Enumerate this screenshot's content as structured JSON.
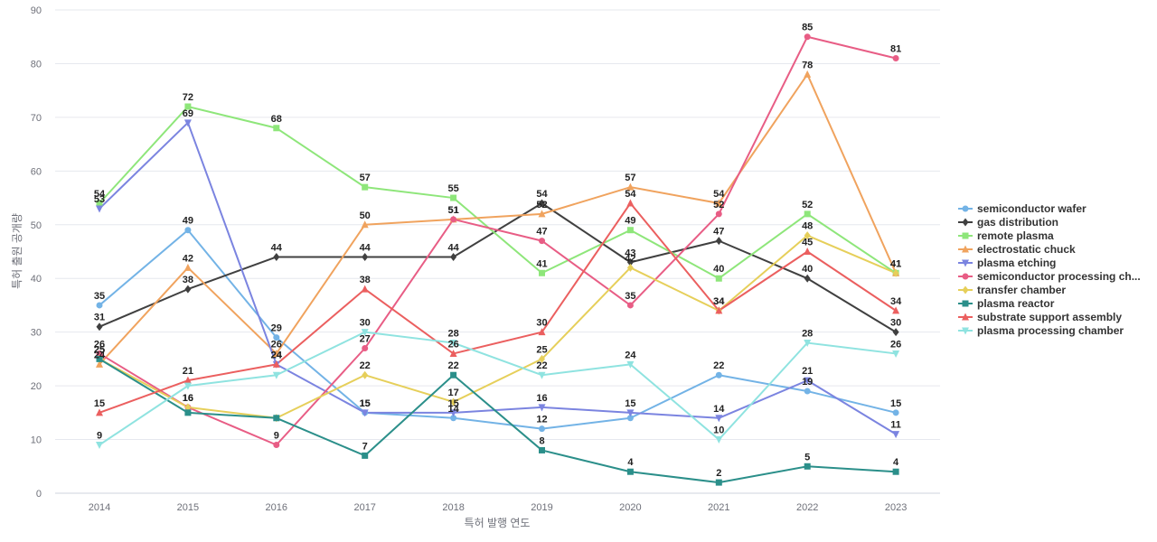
{
  "chart_data": {
    "type": "line",
    "xlabel": "특허 발행 연도",
    "ylabel": "특허 출원 공개량",
    "ylim": [
      0,
      90
    ],
    "yticks": [
      0,
      10,
      20,
      30,
      40,
      50,
      60,
      70,
      80,
      90
    ],
    "grid": true,
    "legend_position": "right",
    "categories": [
      "2014",
      "2015",
      "2016",
      "2017",
      "2018",
      "2019",
      "2020",
      "2021",
      "2022",
      "2023"
    ],
    "series": [
      {
        "name": "semiconductor wafer",
        "color": "#73b3e6",
        "marker": "circle",
        "values": [
          35,
          49,
          29,
          15,
          14,
          12,
          14,
          22,
          19,
          15
        ]
      },
      {
        "name": "gas distribution",
        "color": "#404040",
        "marker": "diamond",
        "values": [
          31,
          38,
          44,
          44,
          44,
          54,
          43,
          47,
          40,
          30
        ]
      },
      {
        "name": "remote plasma",
        "color": "#8ee67a",
        "marker": "square",
        "values": [
          54,
          72,
          68,
          57,
          55,
          41,
          49,
          40,
          52,
          41
        ]
      },
      {
        "name": "electrostatic chuck",
        "color": "#f0a35e",
        "marker": "triangle",
        "values": [
          24,
          42,
          26,
          50,
          51,
          52,
          57,
          54,
          78,
          41
        ]
      },
      {
        "name": "plasma etching",
        "color": "#7b84e0",
        "marker": "triangle-down",
        "values": [
          53,
          69,
          24,
          15,
          15,
          16,
          15,
          14,
          21,
          11
        ]
      },
      {
        "name": "semiconductor processing ch...",
        "color": "#e85d85",
        "marker": "circle",
        "values": [
          26,
          16,
          9,
          27,
          51,
          47,
          35,
          52,
          85,
          81
        ]
      },
      {
        "name": "transfer chamber",
        "color": "#e6cf5a",
        "marker": "diamond",
        "values": [
          25,
          16,
          14,
          22,
          17,
          25,
          42,
          34,
          48,
          41
        ]
      },
      {
        "name": "plasma reactor",
        "color": "#2b8f8a",
        "marker": "square",
        "values": [
          25,
          15,
          14,
          7,
          22,
          8,
          4,
          2,
          5,
          4
        ]
      },
      {
        "name": "substrate support assembly",
        "color": "#eb5f5f",
        "marker": "triangle",
        "values": [
          15,
          21,
          24,
          38,
          26,
          30,
          54,
          34,
          45,
          34
        ]
      },
      {
        "name": "plasma processing chamber",
        "color": "#8fe3e0",
        "marker": "triangle-down",
        "values": [
          9,
          20,
          22,
          30,
          28,
          22,
          24,
          10,
          28,
          26
        ]
      }
    ],
    "data_labels": [
      {
        "series": 0,
        "show": [
          true,
          true,
          true,
          true,
          true,
          true,
          false,
          true,
          true,
          true
        ]
      },
      {
        "series": 1,
        "show": [
          true,
          true,
          true,
          true,
          true,
          true,
          true,
          true,
          true,
          true
        ]
      },
      {
        "series": 2,
        "show": [
          true,
          true,
          true,
          true,
          true,
          true,
          true,
          true,
          true,
          true
        ]
      },
      {
        "series": 3,
        "show": [
          true,
          true,
          true,
          true,
          true,
          true,
          true,
          true,
          true,
          true
        ]
      },
      {
        "series": 4,
        "show": [
          true,
          true,
          true,
          true,
          true,
          true,
          true,
          true,
          true,
          true
        ]
      },
      {
        "series": 5,
        "show": [
          true,
          true,
          true,
          true,
          true,
          true,
          true,
          true,
          true,
          true
        ]
      },
      {
        "series": 6,
        "show": [
          true,
          true,
          false,
          true,
          true,
          true,
          true,
          true,
          true,
          false
        ]
      },
      {
        "series": 7,
        "show": [
          true,
          false,
          false,
          true,
          true,
          true,
          true,
          true,
          true,
          true
        ]
      },
      {
        "series": 8,
        "show": [
          true,
          true,
          true,
          true,
          true,
          true,
          true,
          true,
          true,
          true
        ]
      },
      {
        "series": 9,
        "show": [
          true,
          false,
          false,
          true,
          true,
          true,
          true,
          true,
          true,
          true
        ]
      }
    ]
  }
}
